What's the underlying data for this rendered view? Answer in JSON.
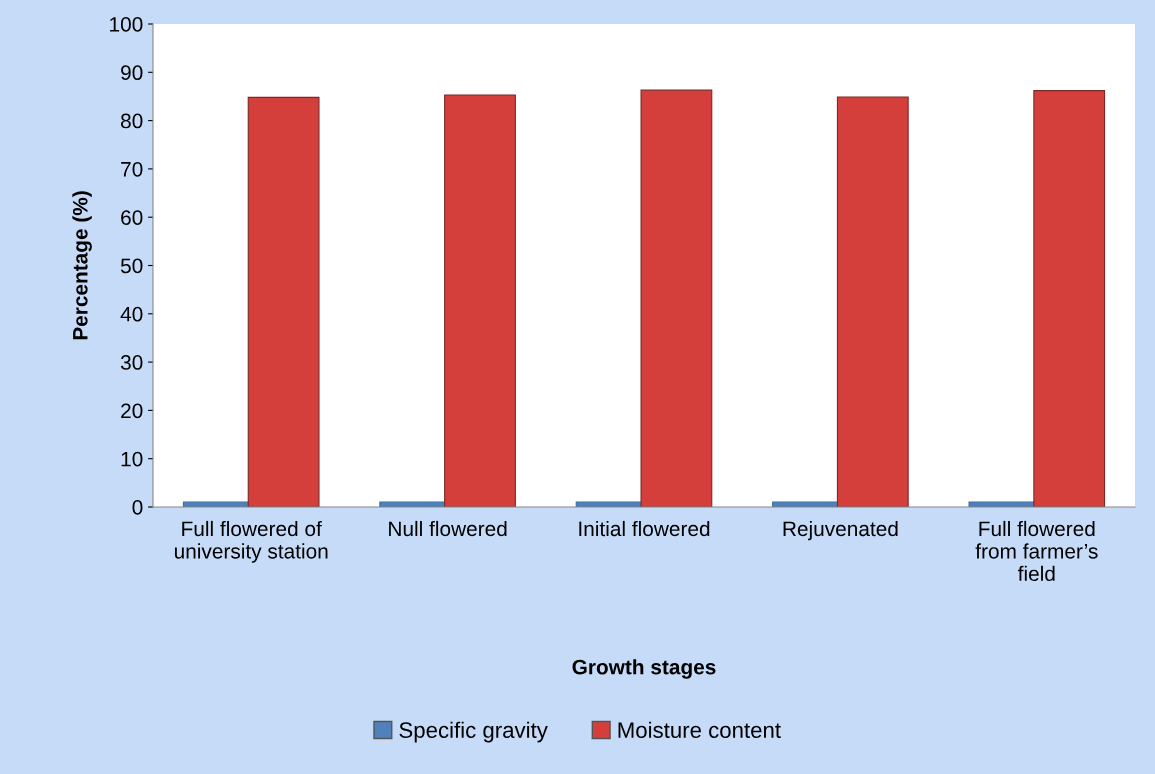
{
  "chart_data": {
    "type": "bar",
    "xlabel": "Growth stages",
    "ylabel": "Percentage (%)",
    "categories": [
      "Full flowered of\nuniversity station",
      "Null flowered",
      "Initial flowered",
      "Rejuvenated",
      "Full flowered\nfrom farmer’s\nfield"
    ],
    "series": [
      {
        "name": "Specific gravity",
        "color": "#4f81bd",
        "values": [
          1.0,
          1.0,
          1.0,
          1.0,
          1.0
        ]
      },
      {
        "name": "Moisture content",
        "color": "#d43f3c",
        "values": [
          84.8,
          85.3,
          86.3,
          84.9,
          86.2
        ]
      }
    ],
    "ylim": [
      0,
      100
    ],
    "yticks": [
      0,
      10,
      20,
      30,
      40,
      50,
      60,
      70,
      80,
      90,
      100
    ],
    "grid": false,
    "legend": "bottom"
  }
}
